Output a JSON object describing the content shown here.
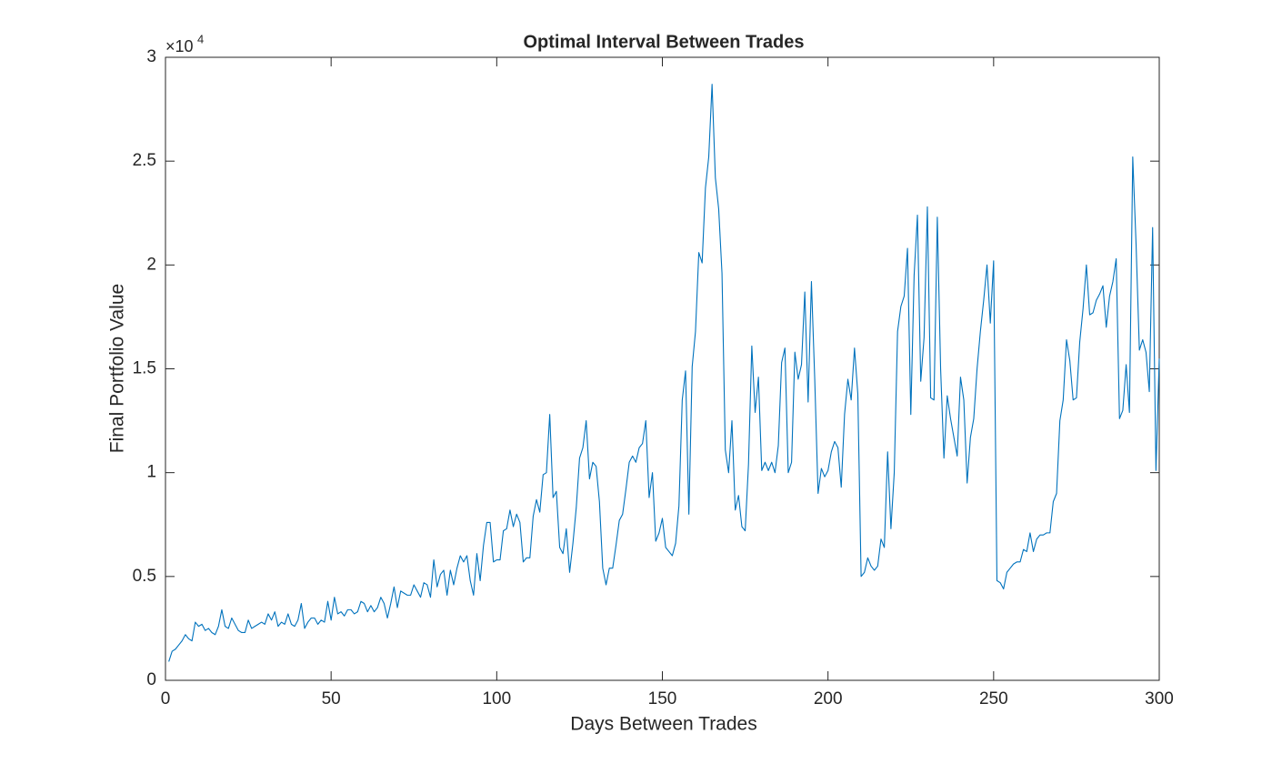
{
  "chart_data": {
    "type": "line",
    "title": "Optimal Interval Between Trades",
    "x_label": "Days Between Trades",
    "y_label": "Final Portfolio Value",
    "y_multiplier": {
      "base": "×10",
      "exponent": "4"
    },
    "color": "#0072bd",
    "xlim": [
      0,
      300
    ],
    "xticks": [
      0,
      50,
      100,
      150,
      200,
      250,
      300
    ],
    "ylim": [
      0,
      30000
    ],
    "yticks": [
      0,
      {
        "value": 5000,
        "label": "0.5"
      },
      {
        "value": 10000,
        "label": "1"
      },
      {
        "value": 15000,
        "label": "1.5"
      },
      {
        "value": 20000,
        "label": "2"
      },
      {
        "value": 25000,
        "label": "2.5"
      },
      {
        "value": 30000,
        "label": "3"
      }
    ],
    "box": true,
    "x": [
      1,
      2,
      3,
      4,
      5,
      6,
      7,
      8,
      9,
      10,
      11,
      12,
      13,
      14,
      15,
      16,
      17,
      18,
      19,
      20,
      21,
      22,
      23,
      24,
      25,
      26,
      27,
      28,
      29,
      30,
      31,
      32,
      33,
      34,
      35,
      36,
      37,
      38,
      39,
      40,
      41,
      42,
      43,
      44,
      45,
      46,
      47,
      48,
      49,
      50,
      51,
      52,
      53,
      54,
      55,
      56,
      57,
      58,
      59,
      60,
      61,
      62,
      63,
      64,
      65,
      66,
      67,
      68,
      69,
      70,
      71,
      72,
      73,
      74,
      75,
      76,
      77,
      78,
      79,
      80,
      81,
      82,
      83,
      84,
      85,
      86,
      87,
      88,
      89,
      90,
      91,
      92,
      93,
      94,
      95,
      96,
      97,
      98,
      99,
      100,
      101,
      102,
      103,
      104,
      105,
      106,
      107,
      108,
      109,
      110,
      111,
      112,
      113,
      114,
      115,
      116,
      117,
      118,
      119,
      120,
      121,
      122,
      123,
      124,
      125,
      126,
      127,
      128,
      129,
      130,
      131,
      132,
      133,
      134,
      135,
      136,
      137,
      138,
      139,
      140,
      141,
      142,
      143,
      144,
      145,
      146,
      147,
      148,
      149,
      150,
      151,
      152,
      153,
      154,
      155,
      156,
      157,
      158,
      159,
      160,
      161,
      162,
      163,
      164,
      165,
      166,
      167,
      168,
      169,
      170,
      171,
      172,
      173,
      174,
      175,
      176,
      177,
      178,
      179,
      180,
      181,
      182,
      183,
      184,
      185,
      186,
      187,
      188,
      189,
      190,
      191,
      192,
      193,
      194,
      195,
      196,
      197,
      198,
      199,
      200,
      201,
      202,
      203,
      204,
      205,
      206,
      207,
      208,
      209,
      210,
      211,
      212,
      213,
      214,
      215,
      216,
      217,
      218,
      219,
      220,
      221,
      222,
      223,
      224,
      225,
      226,
      227,
      228,
      229,
      230,
      231,
      232,
      233,
      234,
      235,
      236,
      237,
      238,
      239,
      240,
      241,
      242,
      243,
      244,
      245,
      246,
      247,
      248,
      249,
      250,
      251,
      252,
      253,
      254,
      255,
      256,
      257,
      258,
      259,
      260,
      261,
      262,
      263,
      264,
      265,
      266,
      267,
      268,
      269,
      270,
      271,
      272,
      273,
      274,
      275,
      276,
      277,
      278,
      279,
      280,
      281,
      282,
      283,
      284,
      285,
      286,
      287,
      288,
      289,
      290,
      291,
      292,
      293,
      294,
      295,
      296,
      297,
      298,
      299,
      300
    ],
    "values": [
      900,
      1400,
      1500,
      1700,
      1900,
      2200,
      2000,
      1900,
      2800,
      2600,
      2700,
      2400,
      2500,
      2300,
      2200,
      2600,
      3400,
      2600,
      2500,
      3000,
      2700,
      2400,
      2300,
      2300,
      2900,
      2500,
      2600,
      2700,
      2800,
      2700,
      3200,
      2900,
      3300,
      2600,
      2800,
      2700,
      3200,
      2700,
      2600,
      2900,
      3700,
      2500,
      2800,
      3000,
      3000,
      2700,
      2900,
      2800,
      3800,
      2900,
      4000,
      3200,
      3300,
      3100,
      3400,
      3400,
      3200,
      3300,
      3800,
      3700,
      3300,
      3600,
      3300,
      3500,
      4000,
      3700,
      3000,
      3700,
      4500,
      3500,
      4300,
      4200,
      4100,
      4100,
      4600,
      4300,
      4000,
      4700,
      4600,
      4000,
      5800,
      4500,
      5100,
      5300,
      4100,
      5300,
      4600,
      5400,
      6000,
      5700,
      6000,
      4800,
      4100,
      6100,
      4800,
      6500,
      7600,
      7600,
      5700,
      5800,
      5800,
      7200,
      7300,
      8200,
      7400,
      8000,
      7600,
      5700,
      5900,
      5900,
      7900,
      8700,
      8100,
      9900,
      10000,
      12800,
      8800,
      9100,
      6400,
      6100,
      7300,
      5200,
      6600,
      8300,
      10700,
      11200,
      12500,
      9700,
      10500,
      10300,
      8600,
      5400,
      4600,
      5400,
      5400,
      6500,
      7700,
      8000,
      9200,
      10500,
      10800,
      10500,
      11200,
      11400,
      12500,
      8800,
      10000,
      6700,
      7100,
      7800,
      6400,
      6200,
      6000,
      6600,
      8400,
      13500,
      14900,
      8000,
      15100,
      16800,
      20600,
      20100,
      23700,
      25200,
      28700,
      24200,
      22700,
      19600,
      11100,
      10000,
      12500,
      8200,
      8900,
      7400,
      7200,
      10400,
      16100,
      12900,
      14600,
      10100,
      10500,
      10100,
      10500,
      10000,
      11300,
      15300,
      16000,
      10000,
      10500,
      15800,
      14500,
      15200,
      18700,
      13400,
      19200,
      14500,
      9000,
      10200,
      9800,
      10100,
      11000,
      11500,
      11200,
      9300,
      12800,
      14500,
      13500,
      16000,
      13800,
      5000,
      5200,
      5900,
      5500,
      5300,
      5500,
      6800,
      6400,
      11000,
      7300,
      10000,
      16800,
      18000,
      18500,
      20800,
      12800,
      19500,
      22400,
      14400,
      16500,
      22800,
      13600,
      13500,
      22300,
      15000,
      10700,
      13700,
      12600,
      11700,
      10800,
      14600,
      13500,
      9500,
      11700,
      12600,
      15000,
      16800,
      18300,
      20000,
      17200,
      20200,
      4800,
      4700,
      4400,
      5200,
      5400,
      5600,
      5700,
      5700,
      6300,
      6200,
      7100,
      6200,
      6800,
      7000,
      7000,
      7100,
      7100,
      8600,
      9000,
      12500,
      13500,
      16400,
      15400,
      13500,
      13600,
      16300,
      17900,
      20000,
      17600,
      17700,
      18300,
      18600,
      19000,
      17000,
      18500,
      19200,
      20300,
      12600,
      13000,
      15200,
      12900,
      25200,
      21000,
      15900,
      16400,
      15800,
      13900,
      21800,
      10100,
      15500
    ]
  }
}
